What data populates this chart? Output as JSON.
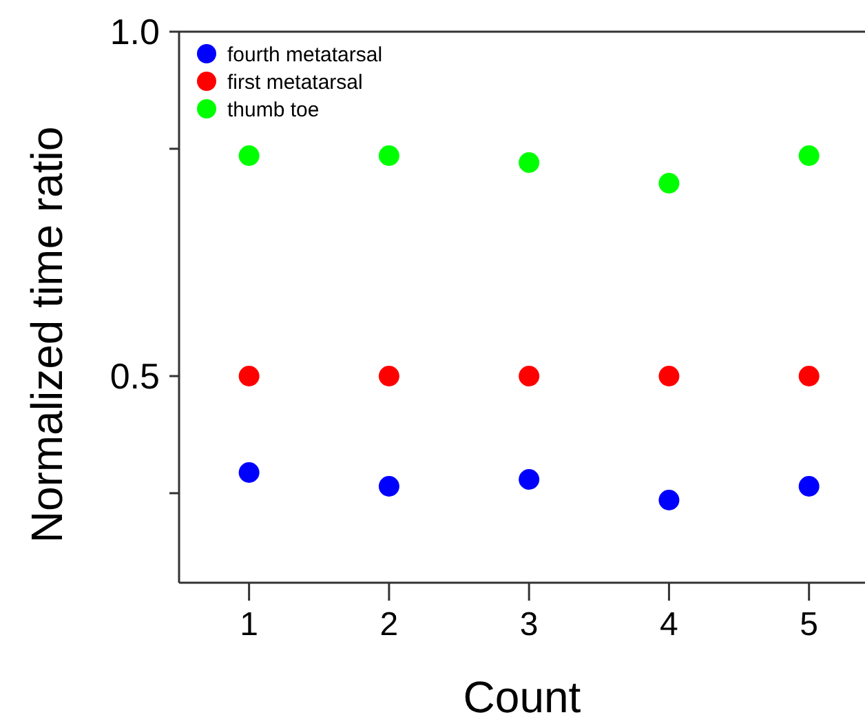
{
  "chart_data": {
    "type": "scatter",
    "xlabel": "Count",
    "ylabel": "Normalized time ratio",
    "x": [
      1,
      2,
      3,
      4,
      5
    ],
    "xlim": [
      0.5,
      5.4
    ],
    "xticks": [
      1,
      2,
      3,
      4,
      5
    ],
    "ylim": [
      0.2,
      1.0
    ],
    "yticks": [
      {
        "value": 0.33,
        "label": null
      },
      {
        "value": 0.5,
        "label": "0.5"
      },
      {
        "value": 0.83,
        "label": null
      },
      {
        "value": 1.0,
        "label": "1.0"
      }
    ],
    "marker": "circle",
    "legend": "top left",
    "grid": false,
    "series": [
      {
        "name": "fourth metatarsal",
        "color": "#0000ff",
        "values": [
          0.36,
          0.34,
          0.35,
          0.32,
          0.34
        ]
      },
      {
        "name": "first metatarsal",
        "color": "#ff0000",
        "values": [
          0.5,
          0.5,
          0.5,
          0.5,
          0.5
        ]
      },
      {
        "name": "thumb toe",
        "color": "#00ff00",
        "values": [
          0.82,
          0.82,
          0.81,
          0.78,
          0.82
        ]
      }
    ]
  }
}
